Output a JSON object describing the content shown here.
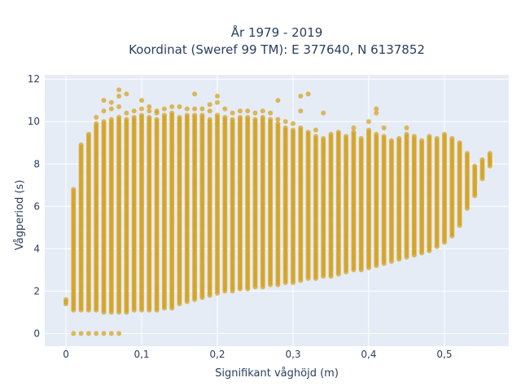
{
  "chart_data": {
    "type": "scatter",
    "title_line1": "År 1979 - 2019",
    "title_line2": "Koordinat (Sweref 99 TM): E 377640, N 6137852",
    "xlabel": "Signifikant våghöjd (m)",
    "ylabel": "Vågperiod (s)",
    "xlim": [
      -0.028,
      0.585
    ],
    "ylim": [
      -0.6,
      12.2
    ],
    "x_ticks": [
      0,
      0.1,
      0.2,
      0.3,
      0.4,
      0.5
    ],
    "x_tick_labels": [
      "0",
      "0,1",
      "0,2",
      "0,3",
      "0,4",
      "0,5"
    ],
    "y_ticks": [
      0,
      2,
      4,
      6,
      8,
      10,
      12
    ],
    "y_tick_labels": [
      "0",
      "2",
      "4",
      "6",
      "8",
      "10",
      "12"
    ],
    "grid": true,
    "legend": "none",
    "background_color": "#e5ecf6",
    "marker_color": "#d4a017",
    "x_step": 0.01,
    "period_step": 0.1,
    "columns": [
      {
        "x": 0.0,
        "ymin": 1.4,
        "ymax": 1.6,
        "zero": false,
        "out": []
      },
      {
        "x": 0.01,
        "ymin": 1.1,
        "ymax": 6.8,
        "zero": true,
        "out": []
      },
      {
        "x": 0.02,
        "ymin": 1.1,
        "ymax": 8.9,
        "zero": true,
        "out": []
      },
      {
        "x": 0.03,
        "ymin": 1.1,
        "ymax": 9.4,
        "zero": true,
        "out": []
      },
      {
        "x": 0.04,
        "ymin": 1.1,
        "ymax": 9.9,
        "zero": true,
        "out": [
          10.2
        ]
      },
      {
        "x": 0.05,
        "ymin": 1.0,
        "ymax": 10.0,
        "zero": true,
        "out": [
          10.5,
          11.0
        ]
      },
      {
        "x": 0.06,
        "ymin": 1.0,
        "ymax": 10.1,
        "zero": true,
        "out": [
          10.6,
          10.9
        ]
      },
      {
        "x": 0.07,
        "ymin": 1.0,
        "ymax": 10.2,
        "zero": true,
        "out": [
          10.7,
          11.2,
          11.5
        ]
      },
      {
        "x": 0.08,
        "ymin": 1.0,
        "ymax": 10.1,
        "zero": false,
        "out": [
          10.4,
          11.3
        ]
      },
      {
        "x": 0.09,
        "ymin": 1.1,
        "ymax": 10.2,
        "zero": false,
        "out": [
          10.5
        ]
      },
      {
        "x": 0.1,
        "ymin": 1.1,
        "ymax": 10.3,
        "zero": false,
        "out": [
          10.6,
          11.0
        ]
      },
      {
        "x": 0.11,
        "ymin": 1.1,
        "ymax": 10.2,
        "zero": false,
        "out": [
          10.5,
          10.7
        ]
      },
      {
        "x": 0.12,
        "ymin": 1.1,
        "ymax": 10.1,
        "zero": false,
        "out": [
          10.4,
          10.5
        ]
      },
      {
        "x": 0.13,
        "ymin": 1.2,
        "ymax": 10.3,
        "zero": false,
        "out": [
          10.6
        ]
      },
      {
        "x": 0.14,
        "ymin": 1.2,
        "ymax": 10.4,
        "zero": false,
        "out": [
          10.7
        ]
      },
      {
        "x": 0.15,
        "ymin": 1.4,
        "ymax": 10.2,
        "zero": false,
        "out": [
          10.7
        ]
      },
      {
        "x": 0.16,
        "ymin": 1.5,
        "ymax": 10.3,
        "zero": false,
        "out": [
          10.6
        ]
      },
      {
        "x": 0.17,
        "ymin": 1.6,
        "ymax": 10.3,
        "zero": false,
        "out": [
          10.6,
          11.3
        ]
      },
      {
        "x": 0.18,
        "ymin": 1.7,
        "ymax": 10.3,
        "zero": false,
        "out": [
          10.6
        ]
      },
      {
        "x": 0.19,
        "ymin": 1.8,
        "ymax": 10.1,
        "zero": false,
        "out": [
          10.5,
          10.8
        ]
      },
      {
        "x": 0.2,
        "ymin": 1.9,
        "ymax": 10.3,
        "zero": false,
        "out": [
          10.9,
          11.2
        ]
      },
      {
        "x": 0.21,
        "ymin": 2.0,
        "ymax": 10.2,
        "zero": false,
        "out": [
          10.6
        ]
      },
      {
        "x": 0.22,
        "ymin": 2.0,
        "ymax": 10.1,
        "zero": false,
        "out": [
          10.4
        ]
      },
      {
        "x": 0.23,
        "ymin": 2.1,
        "ymax": 10.2,
        "zero": false,
        "out": [
          10.5
        ]
      },
      {
        "x": 0.24,
        "ymin": 2.1,
        "ymax": 10.2,
        "zero": false,
        "out": [
          10.5
        ]
      },
      {
        "x": 0.25,
        "ymin": 2.2,
        "ymax": 10.1,
        "zero": false,
        "out": [
          10.4
        ]
      },
      {
        "x": 0.26,
        "ymin": 2.2,
        "ymax": 10.2,
        "zero": false,
        "out": [
          10.5
        ]
      },
      {
        "x": 0.27,
        "ymin": 2.3,
        "ymax": 10.1,
        "zero": false,
        "out": [
          10.4
        ]
      },
      {
        "x": 0.28,
        "ymin": 2.3,
        "ymax": 9.9,
        "zero": false,
        "out": [
          10.1,
          11.0
        ]
      },
      {
        "x": 0.29,
        "ymin": 2.4,
        "ymax": 9.7,
        "zero": false,
        "out": [
          10.0
        ]
      },
      {
        "x": 0.3,
        "ymin": 2.4,
        "ymax": 9.6,
        "zero": false,
        "out": [
          9.9
        ]
      },
      {
        "x": 0.31,
        "ymin": 2.5,
        "ymax": 9.7,
        "zero": false,
        "out": [
          10.5,
          11.2
        ]
      },
      {
        "x": 0.32,
        "ymin": 2.6,
        "ymax": 9.5,
        "zero": false,
        "out": [
          11.3
        ]
      },
      {
        "x": 0.33,
        "ymin": 2.6,
        "ymax": 9.3,
        "zero": false,
        "out": [
          9.6
        ]
      },
      {
        "x": 0.34,
        "ymin": 2.7,
        "ymax": 9.2,
        "zero": false,
        "out": [
          10.4
        ]
      },
      {
        "x": 0.35,
        "ymin": 2.7,
        "ymax": 9.4,
        "zero": false,
        "out": []
      },
      {
        "x": 0.36,
        "ymin": 2.8,
        "ymax": 9.5,
        "zero": false,
        "out": []
      },
      {
        "x": 0.37,
        "ymin": 2.9,
        "ymax": 9.3,
        "zero": false,
        "out": []
      },
      {
        "x": 0.38,
        "ymin": 3.0,
        "ymax": 9.5,
        "zero": false,
        "out": [
          9.7
        ]
      },
      {
        "x": 0.39,
        "ymin": 3.0,
        "ymax": 9.2,
        "zero": false,
        "out": []
      },
      {
        "x": 0.4,
        "ymin": 3.1,
        "ymax": 9.6,
        "zero": false,
        "out": [
          10.0
        ]
      },
      {
        "x": 0.41,
        "ymin": 3.2,
        "ymax": 9.4,
        "zero": false,
        "out": [
          10.4,
          10.6
        ]
      },
      {
        "x": 0.42,
        "ymin": 3.3,
        "ymax": 9.3,
        "zero": false,
        "out": [
          9.7
        ]
      },
      {
        "x": 0.43,
        "ymin": 3.4,
        "ymax": 9.1,
        "zero": false,
        "out": []
      },
      {
        "x": 0.44,
        "ymin": 3.5,
        "ymax": 9.2,
        "zero": false,
        "out": []
      },
      {
        "x": 0.45,
        "ymin": 3.6,
        "ymax": 9.4,
        "zero": false,
        "out": [
          9.7
        ]
      },
      {
        "x": 0.46,
        "ymin": 3.7,
        "ymax": 9.3,
        "zero": false,
        "out": []
      },
      {
        "x": 0.47,
        "ymin": 3.8,
        "ymax": 9.1,
        "zero": false,
        "out": []
      },
      {
        "x": 0.48,
        "ymin": 3.9,
        "ymax": 9.3,
        "zero": false,
        "out": []
      },
      {
        "x": 0.49,
        "ymin": 4.1,
        "ymax": 9.2,
        "zero": false,
        "out": []
      },
      {
        "x": 0.5,
        "ymin": 4.3,
        "ymax": 9.4,
        "zero": false,
        "out": []
      },
      {
        "x": 0.51,
        "ymin": 4.6,
        "ymax": 9.2,
        "zero": false,
        "out": []
      },
      {
        "x": 0.52,
        "ymin": 5.1,
        "ymax": 9.0,
        "zero": false,
        "out": []
      },
      {
        "x": 0.53,
        "ymin": 5.9,
        "ymax": 8.5,
        "zero": false,
        "out": []
      },
      {
        "x": 0.54,
        "ymin": 6.5,
        "ymax": 7.9,
        "zero": false,
        "out": []
      },
      {
        "x": 0.55,
        "ymin": 7.3,
        "ymax": 8.2,
        "zero": false,
        "out": []
      },
      {
        "x": 0.56,
        "ymin": 7.9,
        "ymax": 8.5,
        "zero": false,
        "out": []
      }
    ]
  }
}
